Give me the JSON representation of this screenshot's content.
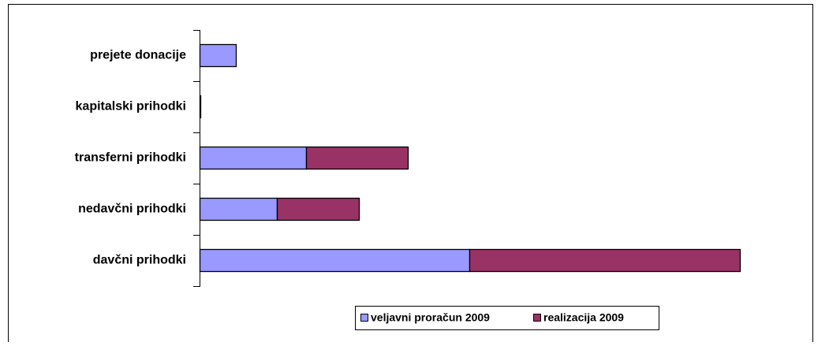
{
  "chart_data": {
    "type": "bar",
    "orientation": "horizontal",
    "stacked": true,
    "categories": [
      "prejete donacije",
      "kapitalski prihodki",
      "transferni prihodki",
      "nedavčni prihodki",
      "davčni prihodki"
    ],
    "series": [
      {
        "name": "veljavni proračun 2009",
        "color": "#9999ff",
        "values": [
          46,
          1,
          135,
          98,
          342
        ]
      },
      {
        "name": "realizacija 2009",
        "color": "#993366",
        "values": [
          0,
          0,
          129,
          104,
          343
        ]
      }
    ],
    "xlim": [
      0,
      750
    ],
    "legend": "bottom"
  }
}
